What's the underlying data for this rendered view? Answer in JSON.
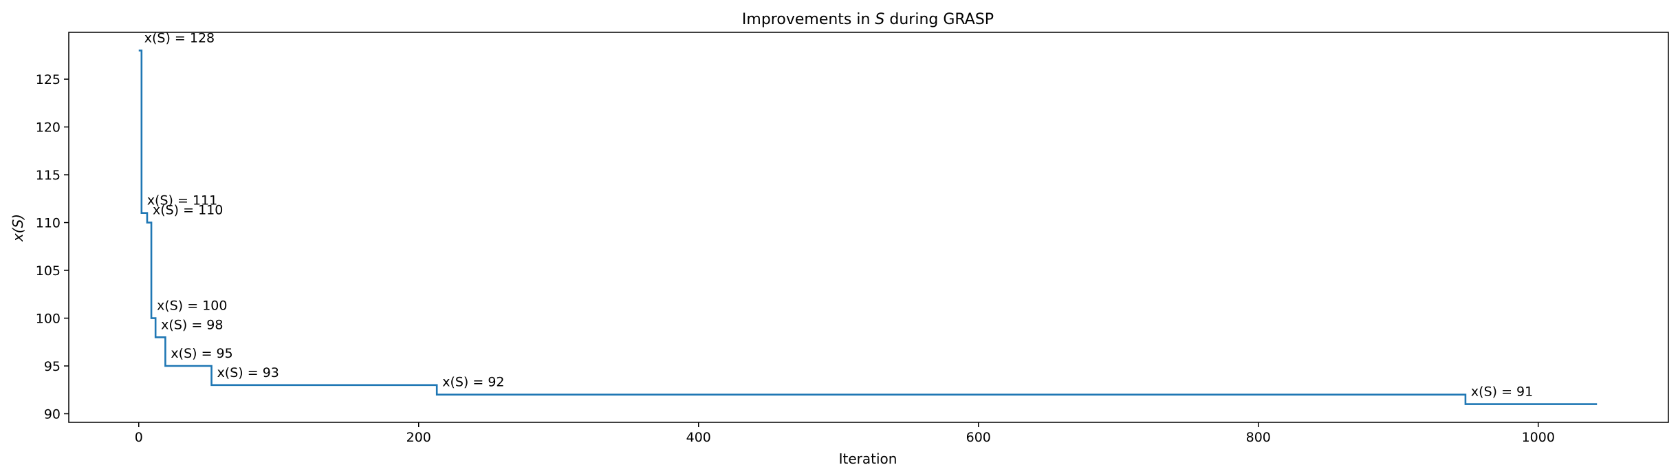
{
  "chart_data": {
    "type": "line",
    "title_prefix": "Improvements in ",
    "title_symbol": "S",
    "title_suffix": " during GRASP",
    "xlabel": "Iteration",
    "ylabel": "x(S)",
    "xlim": [
      -50,
      1093
    ],
    "ylim": [
      89.1,
      129.9
    ],
    "xticks": [
      0,
      200,
      400,
      600,
      800,
      1000
    ],
    "yticks": [
      90,
      95,
      100,
      105,
      110,
      115,
      120,
      125
    ],
    "grid": false,
    "legend": false,
    "series": [
      {
        "color": "#1f77b4",
        "steps": [
          {
            "x": 0,
            "y": 128
          },
          {
            "x": 2,
            "y": 111
          },
          {
            "x": 6,
            "y": 110
          },
          {
            "x": 9,
            "y": 100
          },
          {
            "x": 12,
            "y": 98
          },
          {
            "x": 19,
            "y": 95
          },
          {
            "x": 52,
            "y": 93
          },
          {
            "x": 213,
            "y": 92
          },
          {
            "x": 948,
            "y": 91
          }
        ],
        "x_end": 1042
      }
    ],
    "annotations": [
      {
        "text": "x(S) = 128",
        "x": 0,
        "y": 128
      },
      {
        "text": "x(S) = 111",
        "x": 2,
        "y": 111
      },
      {
        "text": "x(S) = 110",
        "x": 6,
        "y": 110
      },
      {
        "text": "x(S) = 100",
        "x": 9,
        "y": 100
      },
      {
        "text": "x(S) = 98",
        "x": 12,
        "y": 98
      },
      {
        "text": "x(S) = 95",
        "x": 19,
        "y": 95
      },
      {
        "text": "x(S) = 93",
        "x": 52,
        "y": 93
      },
      {
        "text": "x(S) = 92",
        "x": 213,
        "y": 92
      },
      {
        "text": "x(S) = 91",
        "x": 948,
        "y": 91
      }
    ]
  }
}
